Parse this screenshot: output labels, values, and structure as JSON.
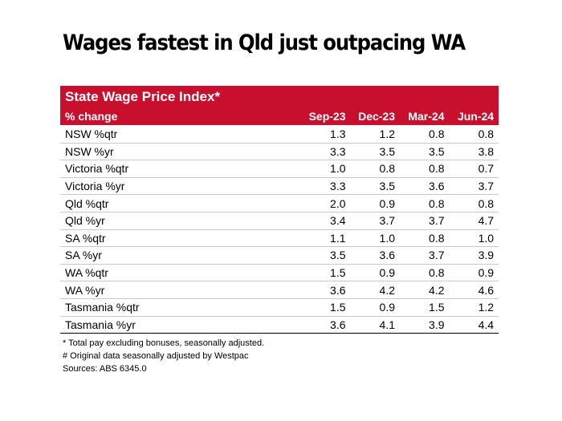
{
  "headline": "Wages fastest in Qld just outpacing WA",
  "table": {
    "title": "State Wage Price Index*",
    "row_header": "% change",
    "columns": [
      "Sep-23",
      "Dec-23",
      "Mar-24",
      "Jun-24"
    ],
    "rows": [
      {
        "label": "NSW %qtr",
        "values": [
          "1.3",
          "1.2",
          "0.8",
          "0.8"
        ]
      },
      {
        "label": "NSW %yr",
        "values": [
          "3.3",
          "3.5",
          "3.5",
          "3.8"
        ]
      },
      {
        "label": "Victoria %qtr",
        "values": [
          "1.0",
          "0.8",
          "0.8",
          "0.7"
        ]
      },
      {
        "label": "Victoria %yr",
        "values": [
          "3.3",
          "3.5",
          "3.6",
          "3.7"
        ]
      },
      {
        "label": "Qld %qtr",
        "values": [
          "2.0",
          "0.9",
          "0.8",
          "0.8"
        ]
      },
      {
        "label": "Qld %yr",
        "values": [
          "3.4",
          "3.7",
          "3.7",
          "4.7"
        ]
      },
      {
        "label": "SA %qtr",
        "values": [
          "1.1",
          "1.0",
          "0.8",
          "1.0"
        ]
      },
      {
        "label": "SA %yr",
        "values": [
          "3.5",
          "3.6",
          "3.7",
          "3.9"
        ]
      },
      {
        "label": "WA %qtr",
        "values": [
          "1.5",
          "0.9",
          "0.8",
          "0.9"
        ]
      },
      {
        "label": "WA %yr",
        "values": [
          "3.6",
          "4.2",
          "4.2",
          "4.6"
        ]
      },
      {
        "label": "Tasmania %qtr",
        "values": [
          "1.5",
          "0.9",
          "1.5",
          "1.2"
        ]
      },
      {
        "label": "Tasmania %yr",
        "values": [
          "3.6",
          "4.1",
          "3.9",
          "4.4"
        ]
      }
    ]
  },
  "notes": {
    "note1": "* Total pay excluding bonuses, seasonally adjusted.",
    "note2": "# Original data seasonally adjusted by Westpac",
    "sources": "Sources: ABS 6345.0"
  },
  "colors": {
    "header_bg": "#c8102e",
    "header_text": "#ffffff"
  }
}
